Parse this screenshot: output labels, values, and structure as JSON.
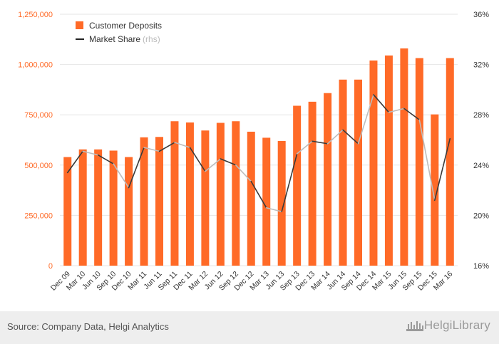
{
  "colors": {
    "bar": "#ff6a27",
    "line_dark": "#3a3a3a",
    "line_light": "#bdbdbd",
    "left_axis_text": "#ff6a27",
    "right_axis_text": "#333333",
    "grid": "#e6e6e6",
    "footer_bg": "#eeeeee"
  },
  "legend": {
    "deposits_label": "Customer Deposits",
    "share_label": "Market Share",
    "share_note": "(rhs)"
  },
  "footer": {
    "source": "Source: Company Data, Helgi Analytics",
    "brand": "HelgiLibrary"
  },
  "chart_data": {
    "type": "bar",
    "title": "",
    "categories": [
      "Dec 09",
      "Mar 10",
      "Jun 10",
      "Sep 10",
      "Dec 10",
      "Mar 11",
      "Jun 11",
      "Sep 11",
      "Dec 11",
      "Mar 12",
      "Jun 12",
      "Sep 12",
      "Dec 12",
      "Mar 13",
      "Jun 13",
      "Sep 13",
      "Dec 13",
      "Mar 14",
      "Jun 14",
      "Sep 14",
      "Dec 14",
      "Mar 15",
      "Jun 15",
      "Sep 15",
      "Dec 15",
      "Mar 16"
    ],
    "series": [
      {
        "name": "Customer Deposits",
        "type": "bar",
        "axis": "left",
        "values": [
          540000,
          578000,
          578000,
          572000,
          540000,
          638000,
          640000,
          718000,
          712000,
          672000,
          710000,
          718000,
          666000,
          636000,
          620000,
          795000,
          815000,
          858000,
          925000,
          925000,
          1020000,
          1045000,
          1080000,
          1032000,
          752000,
          1032000
        ]
      },
      {
        "name": "Market Share",
        "type": "line",
        "axis": "right",
        "values": [
          23.4,
          25.1,
          24.8,
          24.1,
          22.2,
          25.4,
          25.1,
          25.8,
          25.4,
          23.5,
          24.5,
          24.0,
          22.7,
          20.6,
          20.3,
          24.9,
          25.9,
          25.7,
          26.8,
          25.7,
          29.6,
          28.2,
          28.5,
          27.6,
          21.2,
          26.1
        ]
      }
    ],
    "left_axis": {
      "ylim": [
        0,
        1250000
      ],
      "ticks": [
        "0",
        "250,000",
        "500,000",
        "750,000",
        "1,000,000",
        "1,250,000"
      ]
    },
    "right_axis": {
      "ylim": [
        16,
        36
      ],
      "ticks": [
        "16%",
        "20%",
        "24%",
        "28%",
        "32%",
        "36%"
      ]
    },
    "legend_position": "top-left",
    "grid": true
  }
}
